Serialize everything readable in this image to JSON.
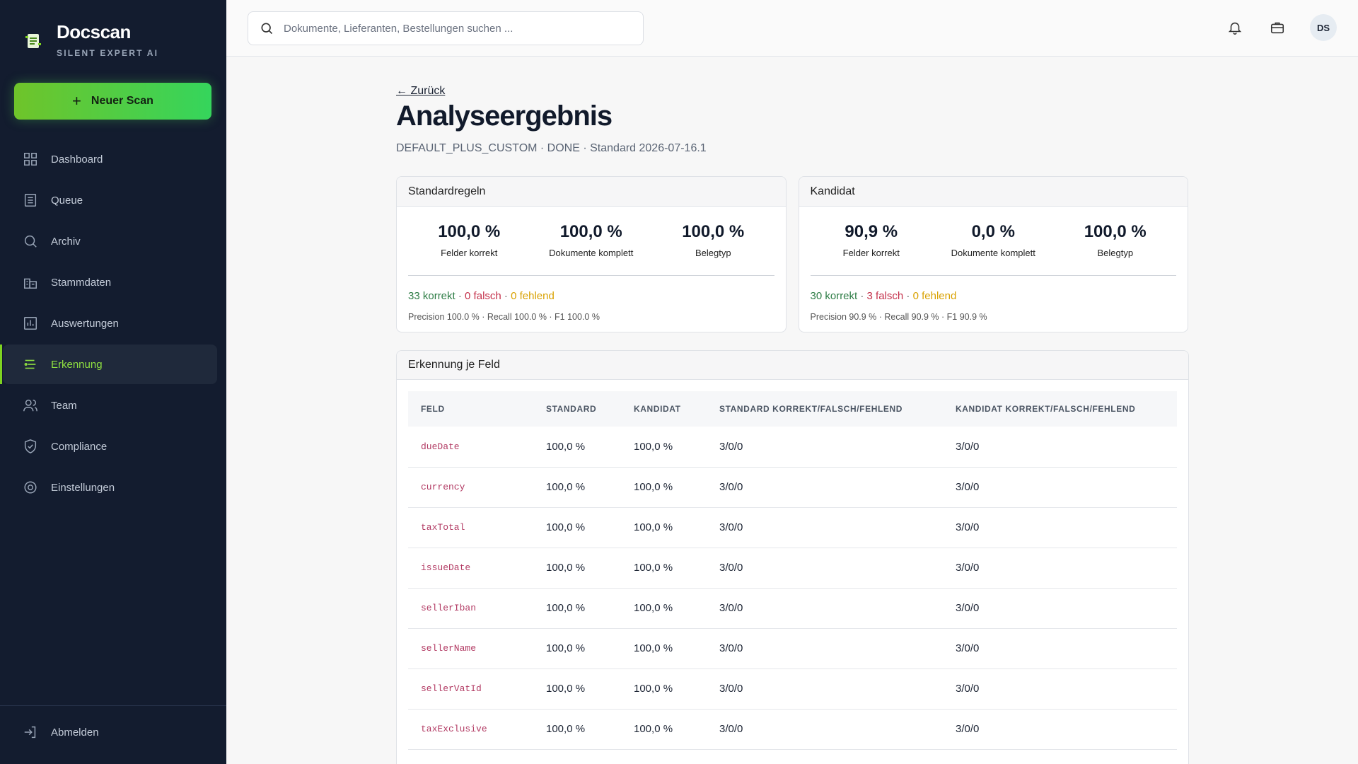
{
  "brand": {
    "name": "Docscan",
    "subtitle": "SILENT EXPERT AI"
  },
  "new_scan_label": "Neuer Scan",
  "nav": [
    {
      "label": "Dashboard",
      "icon": "grid-icon"
    },
    {
      "label": "Queue",
      "icon": "list-icon"
    },
    {
      "label": "Archiv",
      "icon": "search-icon"
    },
    {
      "label": "Stammdaten",
      "icon": "building-icon"
    },
    {
      "label": "Auswertungen",
      "icon": "chart-icon"
    },
    {
      "label": "Erkennung",
      "icon": "filter-lines-icon",
      "active": true
    },
    {
      "label": "Team",
      "icon": "users-icon"
    },
    {
      "label": "Compliance",
      "icon": "shield-icon"
    },
    {
      "label": "Einstellungen",
      "icon": "gear-icon"
    }
  ],
  "logout_label": "Abmelden",
  "search": {
    "placeholder": "Dokumente, Lieferanten, Bestellungen suchen ..."
  },
  "user": {
    "initials": "DS"
  },
  "page": {
    "back": "← Zurück",
    "title": "Analyseergebnis",
    "subtitle": "DEFAULT_PLUS_CUSTOM · DONE · Standard 2026-07-16.1"
  },
  "cards": [
    {
      "title": "Standardregeln",
      "metrics": [
        {
          "value": "100,0 %",
          "label": "Felder korrekt"
        },
        {
          "value": "100,0 %",
          "label": "Dokumente komplett"
        },
        {
          "value": "100,0 %",
          "label": "Belegtyp"
        }
      ],
      "correct": "33 korrekt",
      "wrong": "0 falsch",
      "missing": "0 fehlend",
      "prf": "Precision 100.0 % · Recall 100.0 % · F1 100.0 %"
    },
    {
      "title": "Kandidat",
      "metrics": [
        {
          "value": "90,9 %",
          "label": "Felder korrekt"
        },
        {
          "value": "0,0 %",
          "label": "Dokumente komplett"
        },
        {
          "value": "100,0 %",
          "label": "Belegtyp"
        }
      ],
      "correct": "30 korrekt",
      "wrong": "3 falsch",
      "missing": "0 fehlend",
      "prf": "Precision 90.9 % · Recall 90.9 % · F1 90.9 %"
    }
  ],
  "field_table": {
    "title": "Erkennung je Feld",
    "columns": [
      "FELD",
      "STANDARD",
      "KANDIDAT",
      "STANDARD KORREKT/FALSCH/FEHLEND",
      "KANDIDAT KORREKT/FALSCH/FEHLEND"
    ],
    "rows": [
      [
        "dueDate",
        "100,0 %",
        "100,0 %",
        "3/0/0",
        "3/0/0"
      ],
      [
        "currency",
        "100,0 %",
        "100,0 %",
        "3/0/0",
        "3/0/0"
      ],
      [
        "taxTotal",
        "100,0 %",
        "100,0 %",
        "3/0/0",
        "3/0/0"
      ],
      [
        "issueDate",
        "100,0 %",
        "100,0 %",
        "3/0/0",
        "3/0/0"
      ],
      [
        "sellerIban",
        "100,0 %",
        "100,0 %",
        "3/0/0",
        "3/0/0"
      ],
      [
        "sellerName",
        "100,0 %",
        "100,0 %",
        "3/0/0",
        "3/0/0"
      ],
      [
        "sellerVatId",
        "100,0 %",
        "100,0 %",
        "3/0/0",
        "3/0/0"
      ],
      [
        "taxExclusive",
        "100,0 %",
        "100,0 %",
        "3/0/0",
        "3/0/0"
      ]
    ]
  }
}
